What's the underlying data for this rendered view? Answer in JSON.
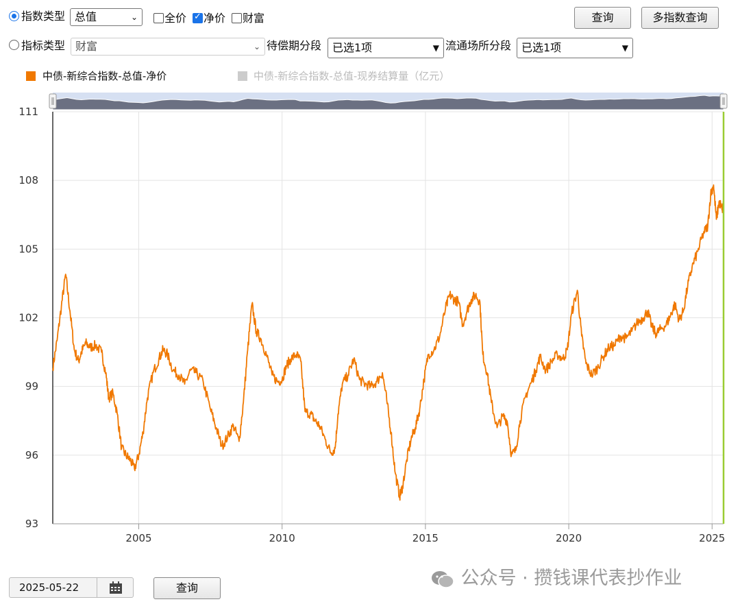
{
  "controls": {
    "index_type_label": "指数类型",
    "index_type_value": "总值",
    "checkbox_full": "全价",
    "checkbox_net": "净价",
    "checkbox_wealth": "财富",
    "query_label": "查询",
    "multi_query_label": "多指数查询",
    "indicator_type_label": "指标类型",
    "indicator_type_value": "财富",
    "maturity_label": "待偿期分段",
    "maturity_value": "已选1项",
    "venue_label": "流通场所分段",
    "venue_value": "已选1项",
    "date_value": "2025-05-22",
    "bottom_query_label": "查询"
  },
  "watermark": "公众号 · 攒钱课代表抄作业",
  "colors": {
    "series": "#f07800",
    "legend_off": "#cccccc",
    "nav_fill": "#6b7082",
    "nav_bg": "#d6e0f2",
    "cursor": "#9acd32"
  },
  "chart_data": {
    "type": "line",
    "legend": [
      "中债-新综合指数-总值-净价",
      "中债-新综合指数-总值-现券结算量（亿元）"
    ],
    "legend_active": [
      true,
      false
    ],
    "xlim": [
      2002.0,
      2025.4
    ],
    "ylim": [
      93,
      111
    ],
    "x_ticks": [
      2005,
      2010,
      2015,
      2020,
      2025
    ],
    "y_ticks": [
      93,
      96,
      99,
      102,
      105,
      108,
      111
    ],
    "grid": true,
    "series": [
      {
        "name": "中债-新综合指数-总值-净价",
        "x": [
          2002.0,
          2002.15,
          2002.3,
          2002.45,
          2002.6,
          2002.75,
          2002.9,
          2003.0,
          2003.15,
          2003.3,
          2003.5,
          2003.7,
          2003.85,
          2003.95,
          2004.1,
          2004.25,
          2004.4,
          2004.55,
          2004.7,
          2004.85,
          2005.0,
          2005.15,
          2005.3,
          2005.5,
          2005.7,
          2005.85,
          2006.0,
          2006.2,
          2006.4,
          2006.6,
          2006.8,
          2007.0,
          2007.25,
          2007.5,
          2007.7,
          2007.9,
          2008.1,
          2008.3,
          2008.5,
          2008.65,
          2008.8,
          2008.95,
          2009.1,
          2009.25,
          2009.45,
          2009.65,
          2009.85,
          2010.0,
          2010.15,
          2010.3,
          2010.5,
          2010.65,
          2010.8,
          2011.0,
          2011.15,
          2011.3,
          2011.5,
          2011.7,
          2011.85,
          2011.95,
          2012.1,
          2012.3,
          2012.5,
          2012.7,
          2012.9,
          2013.1,
          2013.3,
          2013.5,
          2013.65,
          2013.8,
          2013.95,
          2014.1,
          2014.2,
          2014.35,
          2014.5,
          2014.65,
          2014.8,
          2014.95,
          2015.1,
          2015.3,
          2015.5,
          2015.7,
          2015.85,
          2016.0,
          2016.15,
          2016.3,
          2016.45,
          2016.6,
          2016.75,
          2016.9,
          2017.0,
          2017.15,
          2017.3,
          2017.5,
          2017.7,
          2017.85,
          2018.0,
          2018.15,
          2018.3,
          2018.5,
          2018.7,
          2018.85,
          2019.0,
          2019.2,
          2019.4,
          2019.6,
          2019.8,
          2019.95,
          2020.1,
          2020.3,
          2020.45,
          2020.6,
          2020.8,
          2021.0,
          2021.2,
          2021.4,
          2021.6,
          2021.8,
          2022.0,
          2022.2,
          2022.4,
          2022.6,
          2022.75,
          2022.9,
          2023.05,
          2023.2,
          2023.4,
          2023.55,
          2023.7,
          2023.85,
          2024.0,
          2024.15,
          2024.3,
          2024.5,
          2024.7,
          2024.85,
          2024.95,
          2025.05,
          2025.15,
          2025.25,
          2025.35,
          2025.4
        ],
        "values": [
          99.8,
          101.0,
          102.5,
          103.9,
          102.3,
          100.6,
          100.1,
          100.5,
          100.9,
          100.7,
          100.8,
          100.5,
          99.6,
          98.5,
          98.7,
          97.8,
          96.3,
          96.0,
          95.8,
          95.4,
          96.0,
          97.0,
          98.5,
          99.6,
          100.2,
          100.6,
          100.4,
          99.7,
          99.5,
          99.1,
          99.7,
          99.6,
          99.2,
          98.0,
          97.2,
          96.4,
          96.8,
          97.3,
          96.6,
          98.3,
          100.6,
          102.6,
          101.4,
          101.1,
          100.4,
          99.5,
          99.2,
          99.3,
          99.9,
          100.2,
          100.4,
          100.1,
          97.9,
          97.8,
          97.5,
          97.3,
          96.7,
          96.1,
          96.3,
          97.8,
          99.1,
          99.5,
          100.2,
          99.3,
          99.1,
          99.0,
          99.2,
          99.6,
          98.4,
          97.0,
          95.2,
          94.2,
          94.6,
          95.8,
          96.7,
          97.2,
          98.0,
          99.3,
          100.4,
          100.6,
          101.2,
          102.4,
          103.0,
          102.8,
          102.7,
          101.7,
          102.3,
          102.8,
          103.0,
          102.7,
          100.4,
          99.6,
          98.3,
          97.2,
          97.7,
          97.5,
          96.0,
          96.2,
          97.5,
          98.6,
          99.2,
          99.7,
          100.3,
          99.7,
          100.1,
          100.4,
          100.2,
          100.6,
          102.2,
          103.2,
          101.2,
          100.0,
          99.5,
          99.8,
          100.3,
          100.7,
          100.8,
          101.2,
          101.1,
          101.4,
          101.8,
          102.0,
          102.3,
          101.6,
          101.3,
          101.5,
          101.7,
          102.1,
          102.6,
          101.9,
          102.3,
          103.4,
          104.2,
          104.9,
          105.7,
          106.0,
          107.4,
          107.8,
          106.3,
          107.1,
          106.7,
          107.0
        ]
      }
    ],
    "navigator_profile": [
      0.55,
      0.62,
      0.66,
      0.7,
      0.65,
      0.6,
      0.58,
      0.6,
      0.62,
      0.61,
      0.61,
      0.6,
      0.56,
      0.52,
      0.52,
      0.48,
      0.44,
      0.43,
      0.42,
      0.4,
      0.43,
      0.47,
      0.52,
      0.56,
      0.58,
      0.6,
      0.59,
      0.57,
      0.56,
      0.55,
      0.57,
      0.56,
      0.55,
      0.51,
      0.48,
      0.45,
      0.47,
      0.49,
      0.46,
      0.52,
      0.6,
      0.66,
      0.63,
      0.62,
      0.6,
      0.57,
      0.56,
      0.56,
      0.58,
      0.59,
      0.6,
      0.59,
      0.51,
      0.51,
      0.5,
      0.49,
      0.47,
      0.45,
      0.46,
      0.51,
      0.56,
      0.57,
      0.59,
      0.56,
      0.56,
      0.55,
      0.56,
      0.57,
      0.53,
      0.48,
      0.42,
      0.39,
      0.4,
      0.45,
      0.48,
      0.5,
      0.52,
      0.56,
      0.6,
      0.6,
      0.62,
      0.66,
      0.68,
      0.68,
      0.67,
      0.64,
      0.66,
      0.68,
      0.68,
      0.67,
      0.6,
      0.57,
      0.53,
      0.5,
      0.51,
      0.51,
      0.45,
      0.46,
      0.5,
      0.54,
      0.56,
      0.57,
      0.59,
      0.57,
      0.58,
      0.59,
      0.59,
      0.6,
      0.65,
      0.68,
      0.62,
      0.58,
      0.56,
      0.57,
      0.59,
      0.6,
      0.6,
      0.62,
      0.61,
      0.62,
      0.64,
      0.64,
      0.65,
      0.63,
      0.62,
      0.63,
      0.63,
      0.65,
      0.66,
      0.64,
      0.65,
      0.69,
      0.71,
      0.74,
      0.77,
      0.78,
      0.82,
      0.84,
      0.79,
      0.81,
      0.8,
      0.81
    ]
  }
}
